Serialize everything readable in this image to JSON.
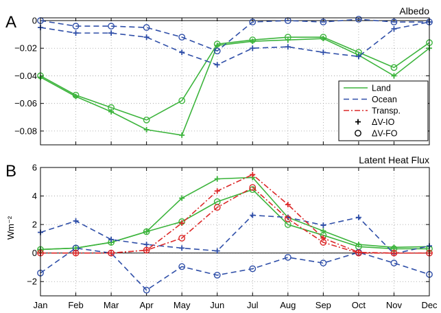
{
  "chart_data": [
    {
      "panel_letter": "A",
      "title": "Albedo",
      "type": "line",
      "ylabel": "",
      "xlabel": "",
      "ylim": [
        -0.09,
        0.002
      ],
      "yticks": [
        0,
        -0.02,
        -0.04,
        -0.06,
        -0.08
      ],
      "ytick_labels": [
        "0",
        "−0.02",
        "−0.04",
        "−0.06",
        "−0.08"
      ],
      "grid": true,
      "legend_position": "lower-right",
      "categories": [
        "Jan",
        "Feb",
        "Mar",
        "Apr",
        "May",
        "Jun",
        "Jul",
        "Aug",
        "Sep",
        "Oct",
        "Nov",
        "Dec"
      ],
      "series": [
        {
          "line": "Land",
          "marker": "ΔV-IO",
          "color": "#3cb43c",
          "dash": "solid",
          "values": [
            -0.041,
            -0.055,
            -0.066,
            -0.079,
            -0.083,
            -0.018,
            -0.015,
            -0.014,
            -0.013,
            -0.025,
            -0.04,
            -0.02
          ]
        },
        {
          "line": "Land",
          "marker": "ΔV-FO",
          "color": "#3cb43c",
          "dash": "solid",
          "values": [
            -0.04,
            -0.054,
            -0.063,
            -0.072,
            -0.058,
            -0.017,
            -0.014,
            -0.012,
            -0.012,
            -0.023,
            -0.034,
            -0.016
          ]
        },
        {
          "line": "Ocean",
          "marker": "ΔV-IO",
          "color": "#2e4ea8",
          "dash": "dashed",
          "values": [
            -0.005,
            -0.009,
            -0.009,
            -0.012,
            -0.023,
            -0.032,
            -0.02,
            -0.019,
            -0.023,
            -0.026,
            -0.006,
            -0.001
          ]
        },
        {
          "line": "Ocean",
          "marker": "ΔV-FO",
          "color": "#2e4ea8",
          "dash": "dashed",
          "values": [
            0.0,
            -0.004,
            -0.004,
            -0.005,
            -0.012,
            -0.022,
            -0.001,
            0.0,
            -0.001,
            0.001,
            -0.001,
            -0.001
          ]
        }
      ]
    },
    {
      "panel_letter": "B",
      "title": "Latent Heat Flux",
      "type": "line",
      "ylabel": "Wm⁻²",
      "xlabel": "",
      "ylim": [
        -3,
        6
      ],
      "yticks": [
        6,
        4,
        2,
        0,
        -2
      ],
      "ytick_labels": [
        "6",
        "4",
        "2",
        "0",
        "−2"
      ],
      "grid": true,
      "categories": [
        "Jan",
        "Feb",
        "Mar",
        "Apr",
        "May",
        "Jun",
        "Jul",
        "Aug",
        "Sep",
        "Oct",
        "Nov",
        "Dec"
      ],
      "series": [
        {
          "line": "Land",
          "marker": "ΔV-IO",
          "color": "#3cb43c",
          "dash": "solid",
          "values": [
            0.25,
            0.35,
            0.75,
            1.5,
            3.85,
            5.2,
            5.3,
            2.5,
            1.55,
            0.6,
            0.4,
            0.45
          ]
        },
        {
          "line": "Land",
          "marker": "ΔV-FO",
          "color": "#3cb43c",
          "dash": "solid",
          "values": [
            0.25,
            0.35,
            0.75,
            1.5,
            2.2,
            3.6,
            4.45,
            2.0,
            1.25,
            0.45,
            0.3,
            0.3
          ]
        },
        {
          "line": "Ocean",
          "marker": "ΔV-IO",
          "color": "#2e4ea8",
          "dash": "dashed",
          "values": [
            1.45,
            2.25,
            0.95,
            0.6,
            0.35,
            0.15,
            2.65,
            2.5,
            1.95,
            2.5,
            -0.05,
            0.5
          ]
        },
        {
          "line": "Ocean",
          "marker": "ΔV-FO",
          "color": "#2e4ea8",
          "dash": "dashed",
          "values": [
            -1.4,
            0.35,
            0.0,
            -2.6,
            -0.95,
            -1.55,
            -1.1,
            -0.3,
            -0.7,
            0.05,
            -0.7,
            -1.5
          ]
        },
        {
          "line": "Transp.",
          "marker": "ΔV-IO",
          "color": "#dc2828",
          "dash": "dashdot",
          "values": [
            0.0,
            0.0,
            0.0,
            0.2,
            2.1,
            4.35,
            5.5,
            3.4,
            1.05,
            0.05,
            0.0,
            0.0
          ]
        },
        {
          "line": "Transp.",
          "marker": "ΔV-FO",
          "color": "#dc2828",
          "dash": "dashdot",
          "values": [
            0.0,
            0.0,
            0.0,
            0.2,
            1.05,
            3.2,
            4.6,
            2.4,
            0.75,
            0.0,
            0.0,
            0.0
          ]
        }
      ]
    }
  ],
  "legend": {
    "lines": [
      {
        "label": "Land",
        "color": "#3cb43c",
        "dash": "solid"
      },
      {
        "label": "Ocean",
        "color": "#2e4ea8",
        "dash": "dashed"
      },
      {
        "label": "Transp.",
        "color": "#dc2828",
        "dash": "dashdot"
      }
    ],
    "markers": [
      {
        "label": "ΔV-IO",
        "symbol": "plus"
      },
      {
        "label": "ΔV-FO",
        "symbol": "circle"
      }
    ]
  }
}
